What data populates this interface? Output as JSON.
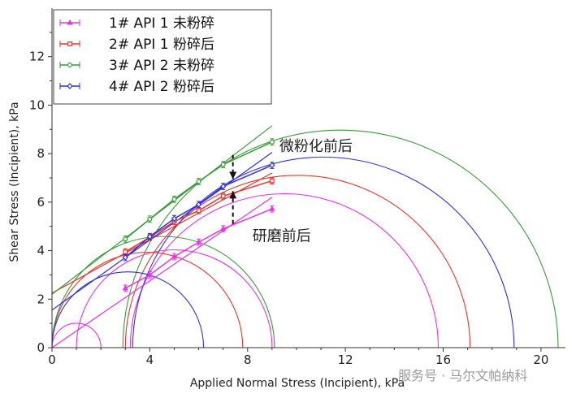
{
  "chart_data": {
    "type": "line",
    "xlabel": "Applied Normal Stress (Incipient), kPa",
    "ylabel": "Shear Stress (Incipient), kPa",
    "xlim": [
      0,
      21
    ],
    "ylim": [
      0,
      14
    ],
    "xticks": [
      0,
      4,
      8,
      12,
      16,
      20
    ],
    "yticks": [
      0,
      2,
      4,
      6,
      8,
      10,
      12
    ],
    "grid": false,
    "legend_position": "top-left",
    "series": [
      {
        "name": "1# API 1 未粉碎",
        "color": "#e832e8",
        "marker": "triangle",
        "errorbars": true,
        "points": [
          [
            3,
            2.45
          ],
          [
            4,
            3.0
          ],
          [
            5,
            3.75
          ],
          [
            6,
            4.35
          ],
          [
            7,
            4.9
          ],
          [
            9,
            5.72
          ]
        ],
        "fit_line": [
          [
            0,
            0
          ],
          [
            9,
            6.2
          ]
        ],
        "circles": [
          [
            0,
            2
          ],
          [
            1,
            9
          ],
          [
            3.2,
            15.8
          ]
        ]
      },
      {
        "name": "2# API 1 粉碎后",
        "color": "#e8342c",
        "marker": "square",
        "errorbars": true,
        "points": [
          [
            3,
            3.95
          ],
          [
            4,
            4.55
          ],
          [
            5,
            5.2
          ],
          [
            6,
            5.65
          ],
          [
            7,
            6.25
          ],
          [
            9,
            6.88
          ]
        ],
        "fit_line": [
          [
            0,
            2.25
          ],
          [
            9,
            7.2
          ]
        ],
        "circles": [
          [
            0,
            7.8
          ],
          [
            3,
            17.1
          ]
        ]
      },
      {
        "name": "3# API 2 未粉碎",
        "color": "#3a9a3a",
        "marker": "circle",
        "errorbars": true,
        "points": [
          [
            3,
            4.48
          ],
          [
            4,
            5.3
          ],
          [
            5,
            6.12
          ],
          [
            6,
            6.85
          ],
          [
            7,
            7.55
          ],
          [
            9,
            8.48
          ]
        ],
        "fit_line": [
          [
            0,
            2.2
          ],
          [
            9,
            9.15
          ]
        ],
        "circles": [
          [
            0,
            9.1
          ],
          [
            2.9,
            20.7
          ]
        ]
      },
      {
        "name": "4# API 2 粉碎后",
        "color": "#2f2fe0",
        "marker": "diamond",
        "errorbars": true,
        "points": [
          [
            3,
            3.72
          ],
          [
            4,
            4.58
          ],
          [
            5,
            5.32
          ],
          [
            6,
            5.9
          ],
          [
            7,
            6.65
          ],
          [
            9,
            7.52
          ]
        ],
        "fit_line": [
          [
            0,
            1.55
          ],
          [
            9,
            8.05
          ]
        ],
        "circles": [
          [
            0,
            6.2
          ],
          [
            3.3,
            18.9
          ]
        ]
      }
    ],
    "annotations": [
      {
        "text": "微粉化前后",
        "x": 9.3,
        "y": 8.1
      },
      {
        "text": "研磨前后",
        "x": 8.2,
        "y": 4.4
      }
    ],
    "arrows": [
      {
        "from": [
          7.4,
          7.95
        ],
        "to": [
          7.4,
          6.95
        ]
      },
      {
        "from": [
          7.4,
          5.1
        ],
        "to": [
          7.4,
          6.45
        ]
      }
    ]
  },
  "watermark": "服务号 · 马尔文帕纳科"
}
